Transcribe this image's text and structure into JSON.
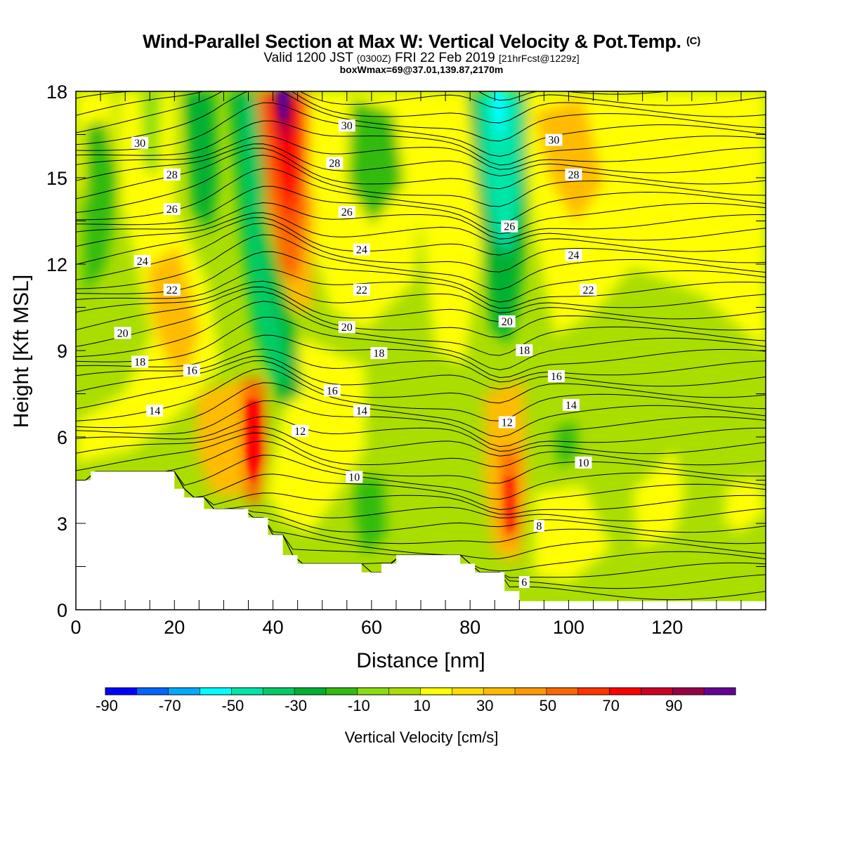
{
  "header": {
    "title": "Wind-Parallel Section at Max W: Vertical Velocity & Pot.Temp.",
    "copyright": "(C)",
    "valid_prefix": "Valid 1200 JST",
    "valid_utc": "(0300Z)",
    "valid_date": "FRI 22 Feb 2019",
    "forecast": "[21hrFcst@1229z]",
    "boxwmax": "boxWmax=69@37.01,139.87,2170m"
  },
  "chart_data": {
    "type": "heatmap",
    "xlabel": "Distance [nm]",
    "ylabel": "Height [Kft MSL]",
    "xlim": [
      0,
      140
    ],
    "ylim": [
      0,
      18
    ],
    "x_ticks": [
      "0",
      "20",
      "40",
      "60",
      "80",
      "100",
      "120"
    ],
    "y_ticks": [
      "0",
      "3",
      "6",
      "9",
      "12",
      "15",
      "18"
    ],
    "colorbar": {
      "title": "Vertical Velocity [cm/s]",
      "tick_labels": [
        "-90",
        "-70",
        "-50",
        "-30",
        "-10",
        "10",
        "30",
        "50",
        "70",
        "90"
      ],
      "levels": [
        -100,
        -90,
        -80,
        -70,
        -60,
        -50,
        -40,
        -30,
        -20,
        -10,
        0,
        10,
        20,
        30,
        40,
        50,
        60,
        70,
        80,
        90,
        100
      ],
      "colors": [
        "#0000ff",
        "#0066ff",
        "#00aaff",
        "#00ffff",
        "#00e6a8",
        "#00cc66",
        "#00b030",
        "#33bb11",
        "#88dd11",
        "#aadd00",
        "#ffff00",
        "#ffdd00",
        "#ffbb00",
        "#ff9900",
        "#ff6600",
        "#ff3300",
        "#ff0000",
        "#cc0022",
        "#990044",
        "#660099"
      ]
    },
    "features": [
      {
        "kind": "updraft",
        "x": 42,
        "y_range": [
          9,
          18
        ],
        "peak_cm_s": 90
      },
      {
        "kind": "updraft",
        "x": 36,
        "y_range": [
          3,
          8
        ],
        "peak_cm_s": 69
      },
      {
        "kind": "updraft",
        "x": 88,
        "y_range": [
          1.5,
          6
        ],
        "peak_cm_s": 50
      },
      {
        "kind": "downdraft",
        "x": 86,
        "y_range": [
          9,
          18
        ],
        "peak_cm_s": -50
      },
      {
        "kind": "downdraft",
        "x": 37,
        "y_range": [
          7,
          18
        ],
        "peak_cm_s": -40
      }
    ],
    "theta_contour_labels": [
      {
        "label": "30",
        "x": 13,
        "y": 16.2
      },
      {
        "label": "30",
        "x": 55,
        "y": 16.8
      },
      {
        "label": "30",
        "x": 97,
        "y": 16.3
      },
      {
        "label": "28",
        "x": 19.5,
        "y": 15.1
      },
      {
        "label": "28",
        "x": 52.5,
        "y": 15.5
      },
      {
        "label": "28",
        "x": 101,
        "y": 15.1
      },
      {
        "label": "26",
        "x": 19.5,
        "y": 13.9
      },
      {
        "label": "26",
        "x": 55,
        "y": 13.8
      },
      {
        "label": "26",
        "x": 88,
        "y": 13.3
      },
      {
        "label": "24",
        "x": 13.5,
        "y": 12.1
      },
      {
        "label": "24",
        "x": 58,
        "y": 12.5
      },
      {
        "label": "24",
        "x": 101,
        "y": 12.3
      },
      {
        "label": "22",
        "x": 19.5,
        "y": 11.1
      },
      {
        "label": "22",
        "x": 58,
        "y": 11.1
      },
      {
        "label": "22",
        "x": 104,
        "y": 11.1
      },
      {
        "label": "20",
        "x": 9.5,
        "y": 9.6
      },
      {
        "label": "20",
        "x": 55,
        "y": 9.8
      },
      {
        "label": "20",
        "x": 87.5,
        "y": 10.0
      },
      {
        "label": "18",
        "x": 13,
        "y": 8.6
      },
      {
        "label": "18",
        "x": 61.5,
        "y": 8.9
      },
      {
        "label": "18",
        "x": 91,
        "y": 9.0
      },
      {
        "label": "16",
        "x": 23.5,
        "y": 8.3
      },
      {
        "label": "16",
        "x": 52,
        "y": 7.6
      },
      {
        "label": "16",
        "x": 97.5,
        "y": 8.1
      },
      {
        "label": "14",
        "x": 16,
        "y": 6.9
      },
      {
        "label": "14",
        "x": 58,
        "y": 6.9
      },
      {
        "label": "14",
        "x": 100.5,
        "y": 7.1
      },
      {
        "label": "12",
        "x": 45.5,
        "y": 6.2
      },
      {
        "label": "12",
        "x": 87.5,
        "y": 6.5
      },
      {
        "label": "10",
        "x": 56.5,
        "y": 4.6
      },
      {
        "label": "10",
        "x": 103,
        "y": 5.1
      },
      {
        "label": "8",
        "x": 94,
        "y": 2.9
      },
      {
        "label": "6",
        "x": 91,
        "y": 0.95
      }
    ]
  }
}
